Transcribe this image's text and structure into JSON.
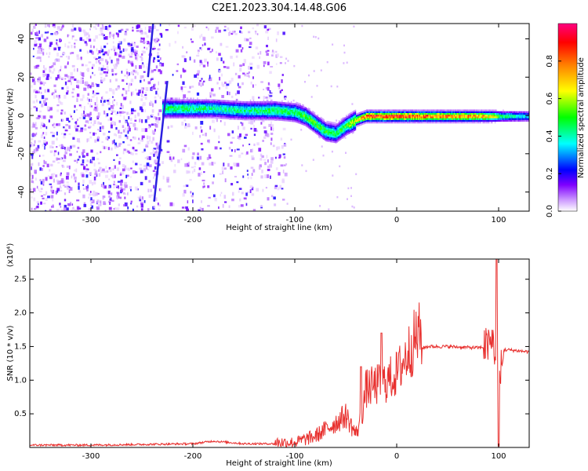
{
  "chart_data": [
    {
      "type": "heatmap",
      "title": "C2E1.2023.304.14.48.G06",
      "xlabel": "Height of straight line (km)",
      "ylabel": "Frequency (Hz)",
      "xlim": [
        -360,
        130
      ],
      "ylim": [
        -50,
        48
      ],
      "xticks": [
        -300,
        -200,
        -100,
        0,
        100
      ],
      "yticks": [
        -40,
        -20,
        0,
        20,
        40
      ],
      "colorbar": {
        "label": "Normalized spectral amplitude",
        "range": [
          0,
          1
        ],
        "ticks": [
          0.0,
          0.2,
          0.4,
          0.6,
          0.8
        ],
        "colormap": [
          "#ffffff",
          "#cc99ff",
          "#7f00ff",
          "#0000ff",
          "#00ffff",
          "#00ff00",
          "#ffff00",
          "#ff7f00",
          "#ff0000",
          "#ff0080"
        ]
      },
      "ridge": {
        "x": [
          -230,
          -210,
          -180,
          -150,
          -120,
          -100,
          -90,
          -80,
          -70,
          -60,
          -50,
          -40,
          -30,
          -20,
          -10,
          0,
          20,
          50,
          80,
          95,
          100,
          130
        ],
        "y": [
          4,
          4,
          4,
          3,
          3,
          2,
          0,
          -4,
          -8,
          -9,
          -5,
          -2,
          0,
          0,
          0,
          0,
          0,
          0,
          0,
          0,
          0,
          0
        ],
        "peak_amplitude": [
          0.5,
          0.5,
          0.45,
          0.45,
          0.5,
          0.5,
          0.55,
          0.55,
          0.55,
          0.5,
          0.55,
          0.7,
          0.9,
          0.95,
          0.95,
          0.95,
          0.9,
          0.85,
          0.8,
          0.7,
          0.5,
          0.35
        ]
      },
      "diagonal_features": [
        {
          "x": [
            -238,
            -225
          ],
          "y": [
            -45,
            18
          ]
        },
        {
          "x": [
            -244,
            -239
          ],
          "y": [
            20,
            48
          ]
        }
      ]
    },
    {
      "type": "line",
      "xlabel": "Height of straight line (km)",
      "ylabel": "SNR (10 * v/v)",
      "y_multiplier": "(x10⁴)",
      "xlim": [
        -360,
        130
      ],
      "ylim": [
        0,
        2.8
      ],
      "xticks": [
        -300,
        -200,
        -100,
        0,
        100
      ],
      "yticks": [
        0.5,
        1.0,
        1.5,
        2.0,
        2.5
      ],
      "color": "#e8302e",
      "series": [
        {
          "x": [
            -360,
            -300,
            -250,
            -200,
            -180,
            -150,
            -120,
            -100,
            -80,
            -60,
            -50,
            -40,
            -35,
            -30,
            -20,
            -10,
            0,
            10,
            20,
            30,
            50,
            80,
            90,
            95,
            100,
            105,
            110,
            130
          ],
          "values": [
            0.02,
            0.02,
            0.03,
            0.04,
            0.08,
            0.04,
            0.04,
            0.04,
            0.12,
            0.3,
            0.4,
            0.15,
            0.35,
            0.75,
            0.8,
            0.85,
            0.95,
            1.2,
            1.45,
            1.5,
            1.5,
            1.48,
            1.5,
            1.6,
            0.9,
            1.45,
            1.45,
            1.42
          ],
          "spikes": [
            {
              "x": -15,
              "value": 1.7
            },
            {
              "x": -35,
              "value": 1.2
            },
            {
              "x": 98,
              "value": 2.8
            },
            {
              "x": 100,
              "value": 0.02
            }
          ]
        }
      ]
    }
  ]
}
